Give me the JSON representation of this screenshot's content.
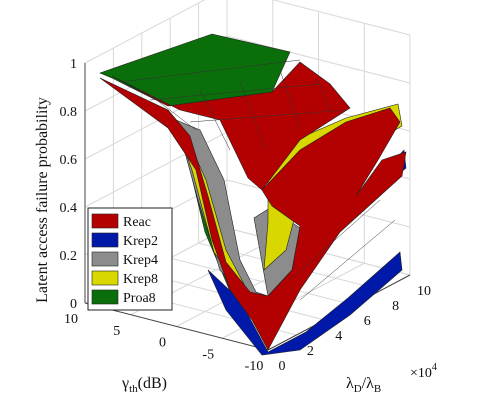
{
  "chart_data": {
    "type": "surface3d",
    "title": "",
    "ylabel": "Latent access failure probability",
    "x_axis": {
      "label_main": "γ",
      "label_sub": "th",
      "label_unit": "(dB)",
      "ticks": [
        "10",
        "5",
        "0",
        "-5",
        "-10"
      ]
    },
    "depth_axis": {
      "label_main1": "λ",
      "label_sub1": "D",
      "label_sep": "/λ",
      "label_sub2": "B",
      "ticks": [
        "0",
        "2",
        "4",
        "6",
        "8",
        "10"
      ],
      "exponent_base": "×10",
      "exponent_power": "4"
    },
    "z_axis": {
      "ticks": [
        "0",
        "0.2",
        "0.4",
        "0.6",
        "0.8",
        "1"
      ],
      "zlim": [
        0,
        1
      ]
    },
    "grid": true,
    "legend_position": "bottom-left",
    "series": [
      {
        "name": "Reac",
        "color": "#b30000"
      },
      {
        "name": "Krep2",
        "color": "#0019a8"
      },
      {
        "name": "Krep4",
        "color": "#8c8c8c"
      },
      {
        "name": "Krep8",
        "color": "#d8d800"
      },
      {
        "name": "Proa8",
        "color": "#0a6e0a"
      }
    ]
  }
}
